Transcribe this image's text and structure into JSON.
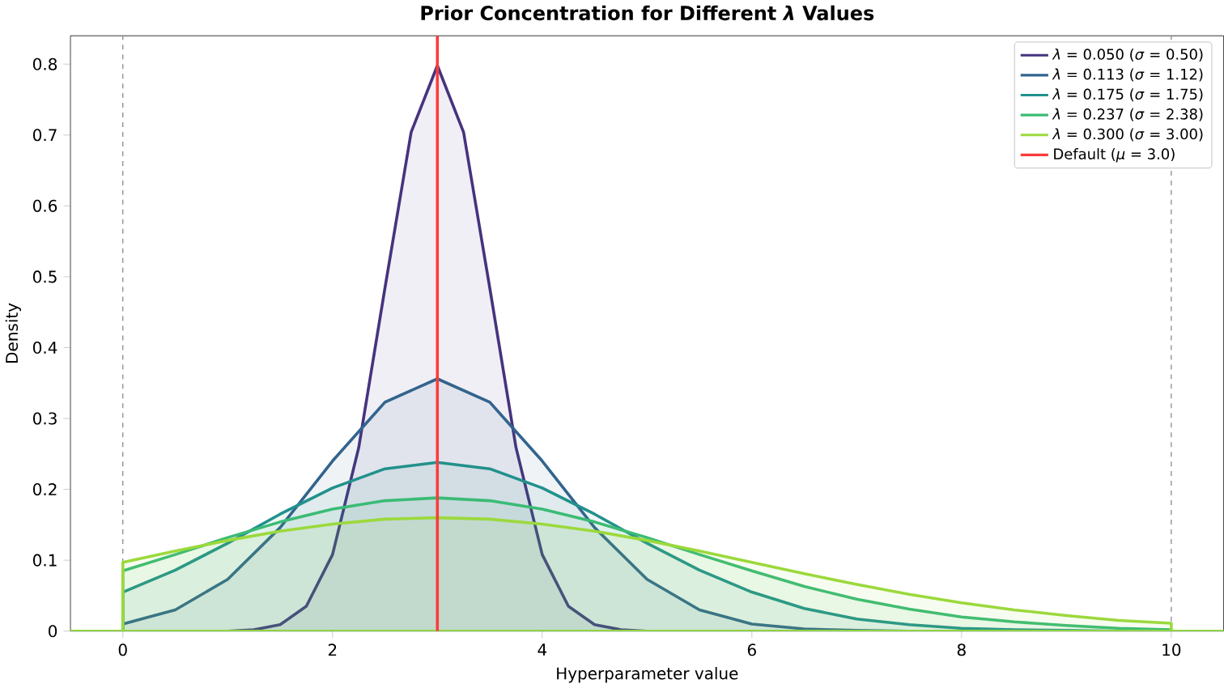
{
  "chart_data": {
    "type": "area",
    "title": "Prior Concentration for Different *λ* Values",
    "xlabel": "Hyperparameter value",
    "ylabel": "Density",
    "xlim": [
      -0.5,
      10.5
    ],
    "ylim": [
      0,
      0.84
    ],
    "xticks": [
      0,
      2,
      4,
      6,
      8,
      10
    ],
    "yticks": [
      0,
      0.1,
      0.2,
      0.3,
      0.4,
      0.5,
      0.6,
      0.7,
      0.8
    ],
    "legend": "top right",
    "grid": false,
    "series": [
      {
        "name": "*λ* = 0.050 (*σ* = 0.50)",
        "color": "#46337e",
        "x": [
          -0.5,
          0,
          1,
          1.25,
          1.5,
          1.75,
          2,
          2.25,
          2.5,
          2.75,
          3,
          3.25,
          3.5,
          3.75,
          4,
          4.25,
          4.5,
          4.75,
          5,
          10,
          10.5
        ],
        "values": [
          0,
          0,
          0,
          0.002,
          0.009,
          0.035,
          0.108,
          0.259,
          0.484,
          0.704,
          0.798,
          0.704,
          0.484,
          0.259,
          0.108,
          0.035,
          0.009,
          0.002,
          0,
          0,
          0
        ]
      },
      {
        "name": "*λ* = 0.113 (*σ* = 1.12)",
        "color": "#32648e",
        "x": [
          -0.5,
          0,
          0,
          0.5,
          1,
          1.5,
          2,
          2.5,
          3,
          3.5,
          4,
          4.5,
          5,
          5.5,
          6,
          6.5,
          7,
          7.5,
          10,
          10,
          10.5
        ],
        "values": [
          0,
          0,
          0.01,
          0.03,
          0.073,
          0.146,
          0.24,
          0.323,
          0.356,
          0.323,
          0.24,
          0.146,
          0.073,
          0.03,
          0.01,
          0.003,
          0.001,
          0,
          0,
          0,
          0
        ]
      },
      {
        "name": "*λ* = 0.175 (*σ* = 1.75)",
        "color": "#21918c",
        "x": [
          -0.5,
          0,
          0,
          0.5,
          1,
          1.5,
          2,
          2.5,
          3,
          3.5,
          4,
          4.5,
          5,
          5.5,
          6,
          6.5,
          7,
          7.5,
          8,
          8.5,
          9,
          9.5,
          10,
          10,
          10.5
        ],
        "values": [
          0,
          0,
          0.055,
          0.086,
          0.124,
          0.165,
          0.202,
          0.229,
          0.238,
          0.229,
          0.202,
          0.165,
          0.124,
          0.086,
          0.055,
          0.032,
          0.017,
          0.009,
          0.004,
          0.002,
          0.001,
          0,
          0,
          0,
          0
        ]
      },
      {
        "name": "*λ* = 0.237 (*σ* = 2.38)",
        "color": "#3bbb75",
        "x": [
          -0.5,
          0,
          0,
          0.5,
          1,
          1.5,
          2,
          2.5,
          3,
          3.5,
          4,
          4.5,
          5,
          5.5,
          6,
          6.5,
          7,
          7.5,
          8,
          8.5,
          9,
          9.5,
          10,
          10,
          10.5
        ],
        "values": [
          0,
          0,
          0.085,
          0.108,
          0.132,
          0.154,
          0.172,
          0.184,
          0.188,
          0.184,
          0.172,
          0.154,
          0.132,
          0.108,
          0.085,
          0.063,
          0.045,
          0.031,
          0.02,
          0.013,
          0.008,
          0.004,
          0.002,
          0,
          0
        ]
      },
      {
        "name": "*λ* = 0.300 (*σ* = 3.00)",
        "color": "#9bd93c",
        "x": [
          -0.5,
          0,
          0,
          0.5,
          1,
          1.5,
          2,
          2.5,
          3,
          3.5,
          4,
          4.5,
          5,
          5.5,
          6,
          6.5,
          7,
          7.5,
          8,
          8.5,
          9,
          9.5,
          10,
          10,
          10.5
        ],
        "values": [
          0,
          0,
          0.097,
          0.113,
          0.128,
          0.141,
          0.151,
          0.158,
          0.16,
          0.158,
          0.151,
          0.141,
          0.128,
          0.113,
          0.097,
          0.081,
          0.066,
          0.052,
          0.04,
          0.03,
          0.022,
          0.015,
          0.011,
          0,
          0
        ]
      },
      {
        "type": "line",
        "name": "Default (*μ* = 3.0)",
        "color": "#ff3b3b",
        "x": [
          3,
          3
        ],
        "values": [
          0,
          0.84
        ]
      }
    ],
    "ref_lines": [
      {
        "axis": "x",
        "value": 0,
        "color": "#808080",
        "line_style": "dashed"
      },
      {
        "axis": "x",
        "value": 10,
        "color": "#808080",
        "line_style": "dashed"
      }
    ]
  }
}
